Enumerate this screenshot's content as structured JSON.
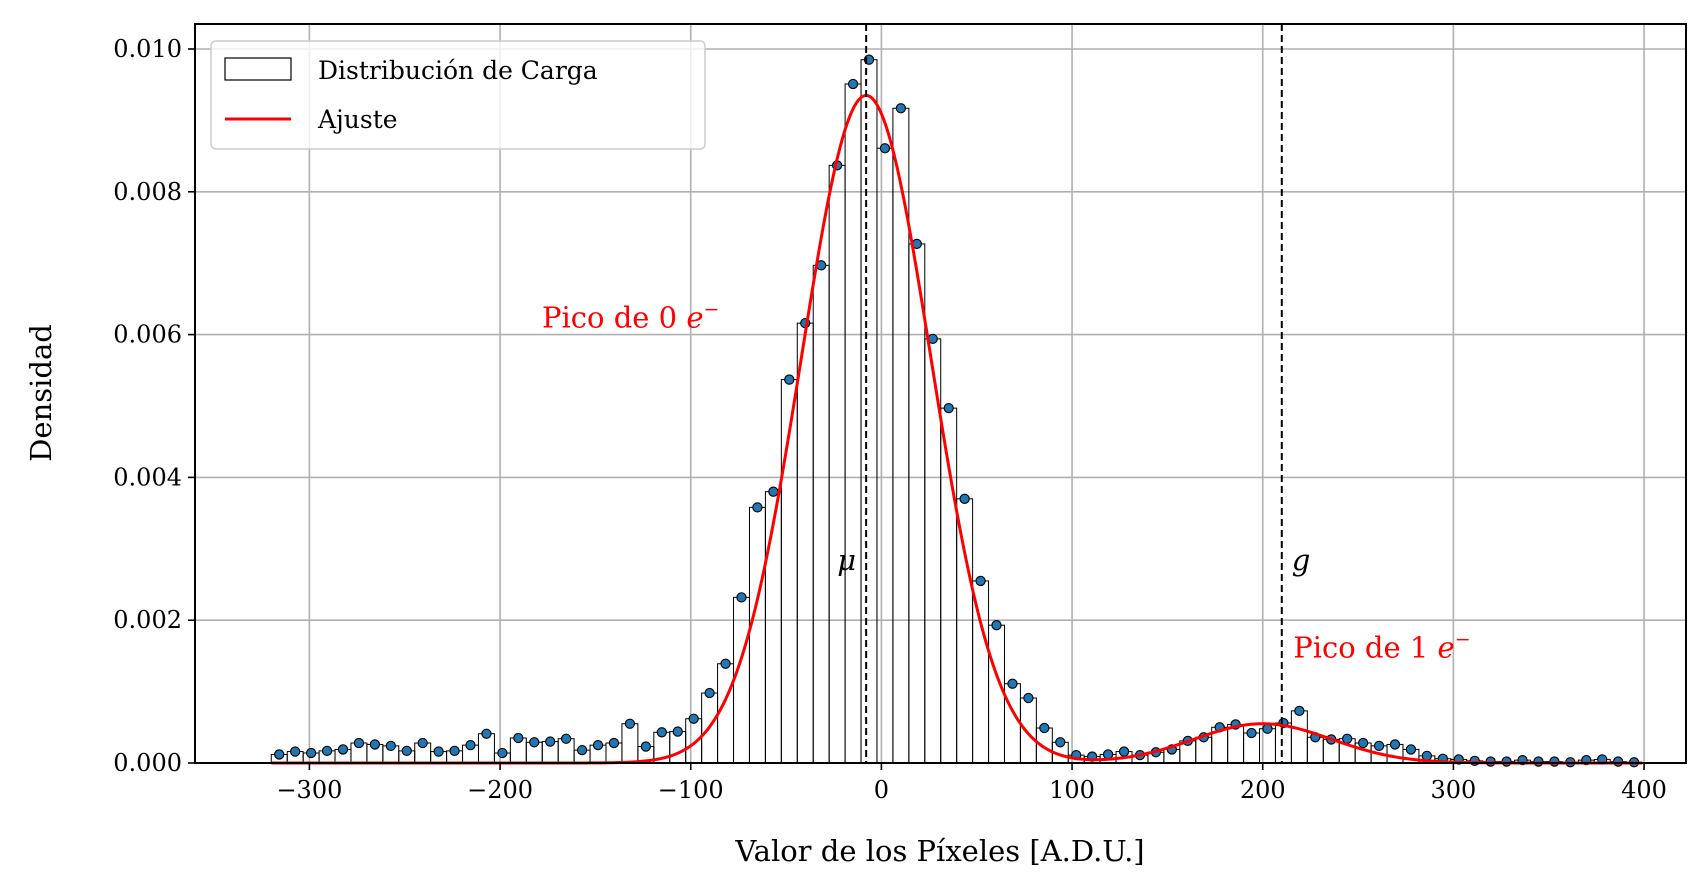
{
  "chart_data": {
    "type": "bar",
    "title": "",
    "xlabel": "Valor de los Píxeles [A.D.U.]",
    "ylabel": "Densidad",
    "xlim": [
      -360,
      422
    ],
    "ylim": [
      0,
      0.01035
    ],
    "xticks": [
      -300,
      -200,
      -100,
      0,
      100,
      200,
      300,
      400
    ],
    "xtick_labels": [
      "−300",
      "−200",
      "−100",
      "0",
      "100",
      "200",
      "300",
      "400"
    ],
    "yticks": [
      0,
      0.002,
      0.004,
      0.006,
      0.008,
      0.01
    ],
    "ytick_labels": [
      "0.000",
      "0.002",
      "0.004",
      "0.006",
      "0.008",
      "0.010"
    ],
    "grid": true,
    "legend": {
      "position": "top-left",
      "entries": [
        {
          "label": "Distribución de Carga",
          "kind": "histogram",
          "color": "#000000"
        },
        {
          "label": "Ajuste",
          "kind": "line",
          "color": "#ff0000"
        }
      ]
    },
    "histogram": {
      "label": "Distribución de Carga",
      "edge_color": "#000000",
      "marker_color": "#1f77b4",
      "bin_start": -320,
      "bin_width": 8.36,
      "values": [
        0.00012,
        0.00016,
        0.00014,
        0.00017,
        0.00019,
        0.00028,
        0.00026,
        0.00024,
        0.00017,
        0.00028,
        0.00016,
        0.00017,
        0.00025,
        0.00041,
        0.00014,
        0.00035,
        0.00029,
        0.0003,
        0.00034,
        0.00018,
        0.00025,
        0.00028,
        0.00055,
        0.00023,
        0.00043,
        0.00044,
        0.00062,
        0.00098,
        0.00139,
        0.00232,
        0.00358,
        0.0038,
        0.00537,
        0.00616,
        0.00697,
        0.00837,
        0.00951,
        0.00985,
        0.00861,
        0.00917,
        0.00727,
        0.00594,
        0.00497,
        0.0037,
        0.00255,
        0.00193,
        0.00111,
        0.00091,
        0.00049,
        0.00029,
        0.00011,
        9e-05,
        0.00012,
        0.00016,
        0.00011,
        0.00015,
        0.00019,
        0.00031,
        0.00036,
        0.0005,
        0.00054,
        0.00042,
        0.00048,
        0.00056,
        0.00073,
        0.00036,
        0.00033,
        0.00034,
        0.00028,
        0.00024,
        0.00026,
        0.00019,
        0.0001,
        6e-05,
        5e-05,
        3e-05,
        2e-05,
        2e-05,
        4e-05,
        2e-05,
        2e-05,
        1e-05,
        4e-05,
        5e-05,
        2e-05,
        1e-05
      ]
    },
    "fit": {
      "label": "Ajuste",
      "color": "#ff0000",
      "components": [
        {
          "amplitude": 0.00935,
          "mean": -8,
          "sigma": 34
        },
        {
          "amplitude": 0.00055,
          "mean": 200,
          "sigma": 36
        }
      ]
    },
    "vlines": [
      {
        "x": -8,
        "label": "μ"
      },
      {
        "x": 210,
        "label": "g"
      }
    ],
    "annotations": [
      {
        "text": "Pico de 0 ",
        "sup": "e",
        "sup_exp": "−",
        "x": -178,
        "y": 0.0061,
        "color": "#ff0000"
      },
      {
        "text": "Pico de 1 ",
        "sup": "e",
        "sup_exp": "−",
        "x": 216,
        "y": 0.00148,
        "color": "#ff0000"
      }
    ]
  }
}
